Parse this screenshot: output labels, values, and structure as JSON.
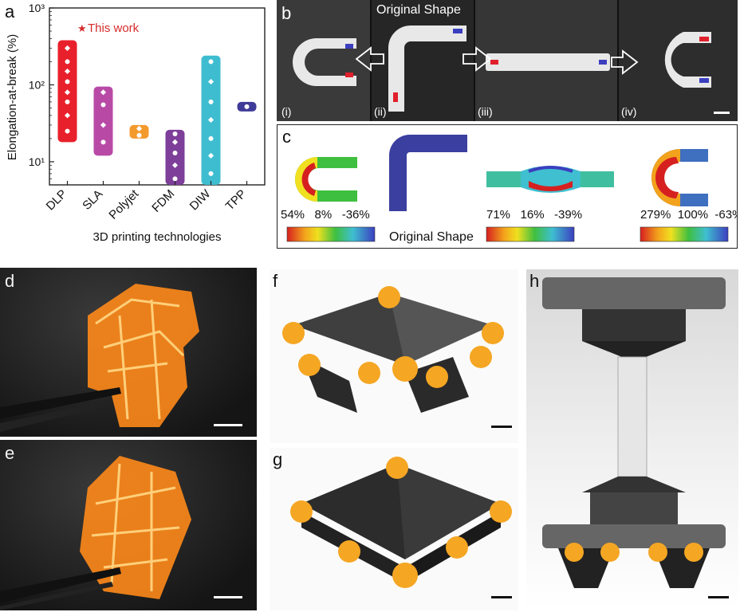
{
  "panel_letters": {
    "a": "a",
    "b": "b",
    "c": "c",
    "d": "d",
    "e": "e",
    "f": "f",
    "g": "g",
    "h": "h"
  },
  "panel_b": {
    "original_label": "Original Shape",
    "sub_i": "(i)",
    "sub_ii": "(ii)",
    "sub_iii": "(iii)",
    "sub_iv": "(iv)"
  },
  "panel_c": {
    "legend1": "54%   8%   -36%",
    "legend2": "71%   16%   -39%",
    "legend3": "279%  100%  -63%",
    "original_label": "Original Shape"
  },
  "colors": {
    "DLP": "#e8202b",
    "SLA": "#b84aa6",
    "Polyjet": "#f39a2c",
    "FDM": "#7d3f99",
    "DIW": "#3fbdd0",
    "TPP": "#3f3b99",
    "this_work": "#d62b2b",
    "filament": "#ff8a1a"
  },
  "chart_data": {
    "type": "box-range",
    "title": "",
    "xlabel": "3D printing technologies",
    "ylabel": "Elongation-at-break (%)",
    "yscale": "log",
    "ylim": [
      5,
      1000
    ],
    "ytick_labels": [
      "10¹",
      "10²",
      "10³"
    ],
    "ytick_values": [
      10,
      100,
      1000
    ],
    "categories": [
      "DLP",
      "SLA",
      "Polyjet",
      "FDM",
      "DIW",
      "TPP"
    ],
    "ranges": [
      {
        "name": "DLP",
        "low": 18,
        "high": 380,
        "points": [
          25,
          40,
          60,
          80,
          110,
          150,
          200,
          300
        ]
      },
      {
        "name": "SLA",
        "low": 12,
        "high": 95,
        "points": [
          18,
          30,
          55,
          80
        ]
      },
      {
        "name": "Polyjet",
        "low": 20,
        "high": 30,
        "points": [
          22,
          27
        ]
      },
      {
        "name": "FDM",
        "low": 5,
        "high": 26,
        "points": [
          6,
          9,
          13,
          18,
          23
        ]
      },
      {
        "name": "DIW",
        "low": 5,
        "high": 240,
        "points": [
          7,
          12,
          20,
          35,
          60,
          110,
          200
        ]
      },
      {
        "name": "TPP",
        "low": 45,
        "high": 60,
        "points": [
          52
        ]
      }
    ],
    "annotation": "This work",
    "annotation_marker": "★"
  }
}
